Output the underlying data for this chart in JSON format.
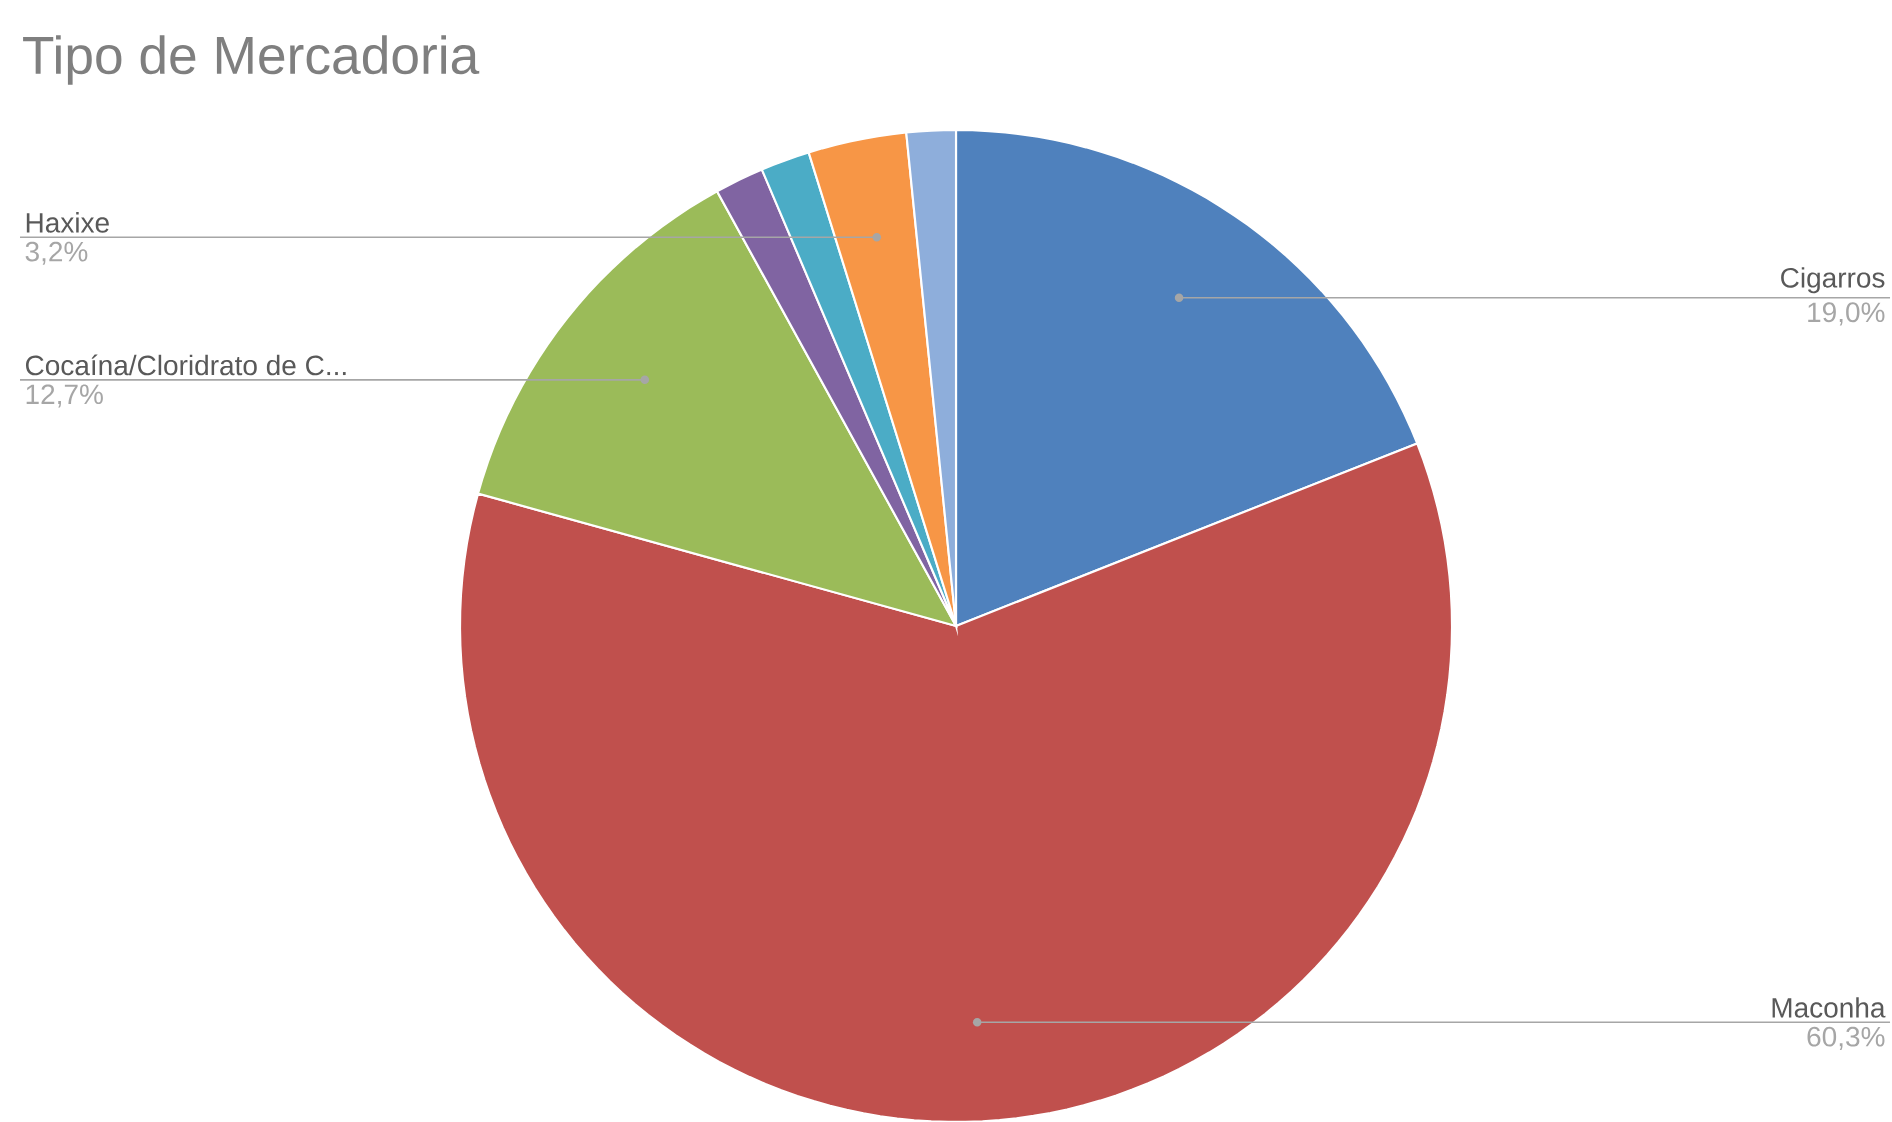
{
  "chart_data": {
    "type": "pie",
    "title": "Tipo de Mercadoria",
    "categories": [
      "Cigarros",
      "Maconha",
      "Cocaína/Cloridrato de C...",
      null,
      null,
      "Haxixe",
      null
    ],
    "values": [
      19.0,
      60.3,
      12.7,
      1.6,
      1.6,
      3.2,
      1.6
    ],
    "value_labels": [
      "19,0%",
      "60,3%",
      "12,7%",
      null,
      null,
      "3,2%",
      null
    ],
    "colors": [
      "#4f81bd",
      "#c0504d",
      "#9bbb59",
      "#8064a2",
      "#4bacc6",
      "#f79646",
      "#8eaedb"
    ]
  }
}
